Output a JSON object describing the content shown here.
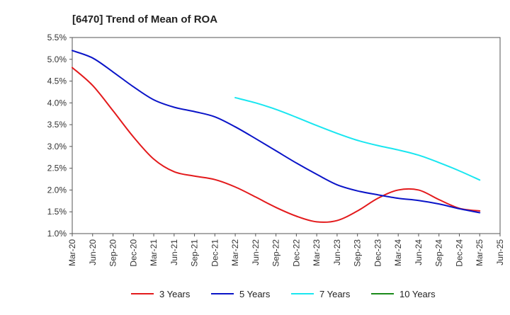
{
  "chart_data": {
    "type": "line",
    "title": "[6470]  Trend of Mean of ROA",
    "xlabel": "",
    "ylabel": "",
    "x_ticks": [
      "Mar-20",
      "Jun-20",
      "Sep-20",
      "Dec-20",
      "Mar-21",
      "Jun-21",
      "Sep-21",
      "Dec-21",
      "Mar-22",
      "Jun-22",
      "Sep-22",
      "Dec-22",
      "Mar-23",
      "Jun-23",
      "Sep-23",
      "Dec-23",
      "Mar-24",
      "Jun-24",
      "Sep-24",
      "Dec-24",
      "Mar-25",
      "Jun-25"
    ],
    "y_ticks": [
      "1.0%",
      "1.5%",
      "2.0%",
      "2.5%",
      "3.0%",
      "3.5%",
      "4.0%",
      "4.5%",
      "5.0%",
      "5.5%"
    ],
    "ylim": [
      1.0,
      5.5
    ],
    "grid": true,
    "legend_position": "bottom",
    "series": [
      {
        "name": "3 Years",
        "color": "#e31a1c",
        "values": [
          4.81,
          4.4,
          3.82,
          3.22,
          2.71,
          2.42,
          2.32,
          2.24,
          2.07,
          1.84,
          1.6,
          1.4,
          1.27,
          1.3,
          1.52,
          1.81,
          2.0,
          2.0,
          1.78,
          1.58,
          1.52,
          null
        ]
      },
      {
        "name": "5 Years",
        "color": "#0a14c8",
        "values": [
          5.2,
          5.03,
          4.71,
          4.37,
          4.07,
          3.9,
          3.8,
          3.68,
          3.45,
          3.18,
          2.9,
          2.62,
          2.36,
          2.12,
          1.98,
          1.89,
          1.81,
          1.76,
          1.68,
          1.57,
          1.48,
          null
        ]
      },
      {
        "name": "7 Years",
        "color": "#19e6f0",
        "values": [
          null,
          null,
          null,
          null,
          null,
          null,
          null,
          null,
          4.12,
          4.0,
          3.85,
          3.67,
          3.48,
          3.3,
          3.14,
          3.02,
          2.92,
          2.8,
          2.63,
          2.44,
          2.23,
          null
        ]
      },
      {
        "name": "10 Years",
        "color": "#1a8a1a",
        "values": [
          null,
          null,
          null,
          null,
          null,
          null,
          null,
          null,
          null,
          null,
          null,
          null,
          null,
          null,
          null,
          null,
          null,
          null,
          null,
          null,
          null,
          null
        ]
      }
    ]
  }
}
